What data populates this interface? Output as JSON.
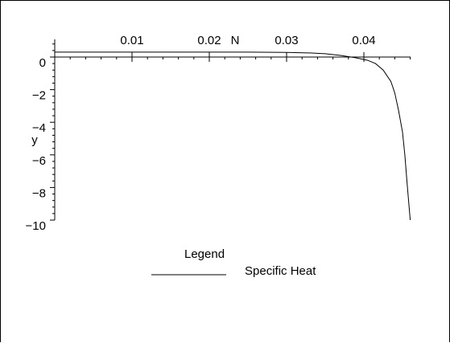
{
  "chart_data": {
    "type": "line",
    "title": "",
    "xlabel": "N",
    "ylabel": "y",
    "xlim": [
      0,
      0.046
    ],
    "ylim": [
      -10,
      0.8
    ],
    "x_ticks": [
      0.01,
      0.02,
      0.03,
      0.04
    ],
    "x_tick_labels": [
      "0.01",
      "0.02",
      "0.03",
      "0.04"
    ],
    "y_ticks": [
      0,
      -2,
      -4,
      -6,
      -8,
      -10
    ],
    "y_tick_labels": [
      "0",
      "−2",
      "−4",
      "−6",
      "−8",
      "−10"
    ],
    "grid": false,
    "legend": {
      "title": "Legend",
      "position": "below plot",
      "entries": [
        {
          "label": "Specific Heat",
          "color": "#000000",
          "style": "solid"
        }
      ]
    },
    "series": [
      {
        "name": "Specific Heat",
        "color": "#000000",
        "x": [
          0,
          0.005,
          0.01,
          0.015,
          0.02,
          0.025,
          0.03,
          0.033,
          0.035,
          0.037,
          0.039,
          0.0405,
          0.0415,
          0.0425,
          0.0435,
          0.044,
          0.0445,
          0.045,
          0.0453,
          0.0456,
          0.046
        ],
        "y": [
          0.3,
          0.3,
          0.3,
          0.3,
          0.3,
          0.3,
          0.28,
          0.25,
          0.2,
          0.1,
          -0.05,
          -0.2,
          -0.4,
          -0.8,
          -1.5,
          -2.2,
          -3.3,
          -4.6,
          -6.0,
          -7.8,
          -10.0
        ]
      }
    ]
  }
}
